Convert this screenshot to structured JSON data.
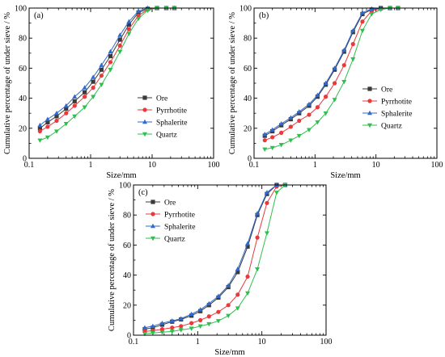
{
  "colors": {
    "Ore": "#3a3a3a",
    "Pyrrhotite": "#e8393b",
    "Sphalerite": "#2f6ad0",
    "Quartz": "#2fbf4f"
  },
  "chart_data": [
    {
      "type": "line",
      "panel_label": "(a)",
      "xlabel": "Size/mm",
      "ylabel": "Cumulative percentage of under sieve / %",
      "xscale": "log",
      "xlim": [
        0.1,
        100
      ],
      "ylim": [
        0,
        100
      ],
      "x_ticks": [
        "0.1",
        "1",
        "10",
        "100"
      ],
      "y_ticks": [
        "0",
        "20",
        "40",
        "60",
        "80",
        "100"
      ],
      "legend_position": "bottom-right",
      "x": [
        0.15,
        0.2,
        0.28,
        0.4,
        0.55,
        0.8,
        1.1,
        1.5,
        2.1,
        3.0,
        4.2,
        6.0,
        8.5,
        12,
        17,
        23
      ],
      "series": [
        {
          "name": "Ore",
          "marker": "square",
          "values": [
            20,
            24,
            28,
            33,
            38,
            44,
            51,
            59,
            68,
            79,
            89,
            97,
            99.5,
            100,
            100,
            100
          ]
        },
        {
          "name": "Pyrrhotite",
          "marker": "circle",
          "values": [
            18,
            21,
            25,
            30,
            35,
            41,
            47,
            55,
            64,
            75,
            86,
            95,
            99,
            100,
            100,
            100
          ]
        },
        {
          "name": "Sphalerite",
          "marker": "triangle-up",
          "values": [
            22,
            26,
            30,
            35,
            41,
            47,
            54,
            62,
            71,
            82,
            91,
            98,
            100,
            100,
            100,
            100
          ]
        },
        {
          "name": "Quartz",
          "marker": "triangle-down",
          "values": [
            12,
            14,
            18,
            23,
            28,
            34,
            41,
            49,
            59,
            71,
            83,
            93,
            98.5,
            100,
            100,
            100
          ]
        }
      ]
    },
    {
      "type": "line",
      "panel_label": "(b)",
      "xlabel": "Size/mm",
      "ylabel": "Cumulative percentage of under sieve / %",
      "xscale": "log",
      "xlim": [
        0.1,
        100
      ],
      "ylim": [
        0,
        100
      ],
      "x_ticks": [
        "0.1",
        "1",
        "10",
        "100"
      ],
      "y_ticks": [
        "0",
        "20",
        "40",
        "60",
        "80",
        "100"
      ],
      "legend_position": "right",
      "x": [
        0.15,
        0.2,
        0.28,
        0.4,
        0.55,
        0.8,
        1.1,
        1.5,
        2.1,
        3.0,
        4.2,
        6.0,
        8.5,
        12,
        17,
        23
      ],
      "series": [
        {
          "name": "Ore",
          "marker": "square",
          "values": [
            15,
            18,
            22,
            26,
            30,
            35,
            41,
            49,
            59,
            71,
            84,
            96,
            99,
            100,
            100,
            100
          ]
        },
        {
          "name": "Pyrrhotite",
          "marker": "circle",
          "values": [
            12,
            14,
            17,
            21,
            25,
            29,
            34,
            41,
            50,
            62,
            76,
            91,
            98,
            99.5,
            100,
            100
          ]
        },
        {
          "name": "Sphalerite",
          "marker": "triangle-up",
          "values": [
            16,
            19,
            23,
            27,
            31,
            36,
            42,
            50,
            60,
            72,
            85,
            97,
            99.5,
            100,
            100,
            100
          ]
        },
        {
          "name": "Quartz",
          "marker": "triangle-down",
          "values": [
            6,
            7,
            9,
            12,
            15,
            19,
            24,
            30,
            39,
            51,
            66,
            85,
            96,
            99,
            100,
            100
          ]
        }
      ]
    },
    {
      "type": "line",
      "panel_label": "(c)",
      "xlabel": "Size/mm",
      "ylabel": "Cumulative percentage of under sieve / %",
      "xscale": "log",
      "xlim": [
        0.1,
        100
      ],
      "ylim": [
        0,
        100
      ],
      "x_ticks": [
        "0.1",
        "1",
        "10",
        "100"
      ],
      "y_ticks": [
        "0",
        "20",
        "40",
        "60",
        "80",
        "100"
      ],
      "legend_position": "top-left",
      "x": [
        0.15,
        0.2,
        0.28,
        0.4,
        0.55,
        0.8,
        1.1,
        1.5,
        2.1,
        3.0,
        4.2,
        6.0,
        8.5,
        12,
        17,
        23
      ],
      "series": [
        {
          "name": "Ore",
          "marker": "square",
          "values": [
            4,
            5,
            7,
            9,
            10.5,
            13,
            16,
            20,
            25,
            32,
            42,
            59,
            80,
            94,
            100,
            100
          ]
        },
        {
          "name": "Pyrrhotite",
          "marker": "circle",
          "values": [
            2.5,
            3,
            4,
            5,
            6,
            8,
            10,
            12.5,
            15.5,
            20,
            27,
            39,
            65,
            88,
            99,
            100
          ]
        },
        {
          "name": "Sphalerite",
          "marker": "triangle-up",
          "values": [
            5,
            6,
            8,
            9.5,
            11,
            14,
            17,
            21,
            26,
            33,
            44,
            61,
            81,
            95,
            100,
            100
          ]
        },
        {
          "name": "Quartz",
          "marker": "triangle-down",
          "values": [
            1,
            1.5,
            2,
            2.5,
            3.5,
            4.5,
            6,
            7.5,
            9.5,
            13,
            18,
            28,
            44,
            68,
            95,
            100
          ]
        }
      ]
    }
  ]
}
